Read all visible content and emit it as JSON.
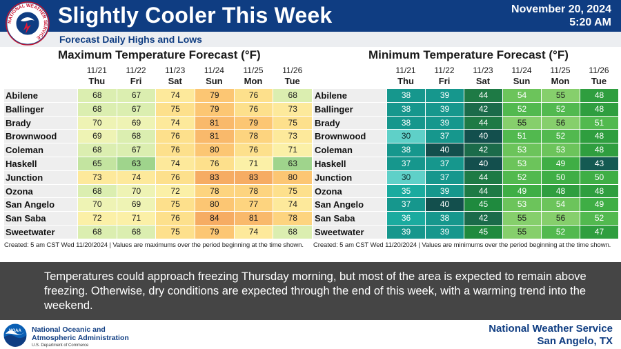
{
  "header": {
    "title": "Slightly Cooler This Week",
    "date": "November 20, 2024",
    "time": "5:20 AM",
    "subtitle": "Forecast Daily Highs and Lows",
    "logo_text": "NATIONAL WEATHER SERVICE"
  },
  "days": [
    {
      "date": "11/21",
      "dow": "Thu"
    },
    {
      "date": "11/22",
      "dow": "Fri"
    },
    {
      "date": "11/23",
      "dow": "Sat"
    },
    {
      "date": "11/24",
      "dow": "Sun"
    },
    {
      "date": "11/25",
      "dow": "Mon"
    },
    {
      "date": "11/26",
      "dow": "Tue"
    }
  ],
  "max_table": {
    "title": "Maximum Temperature Forecast (°F)",
    "footnote": "Created: 5 am CST Wed 11/20/2024  |  Values are maximums over the period beginning at the time shown.",
    "rows": [
      {
        "city": "Abilene",
        "values": [
          68,
          67,
          74,
          79,
          76,
          68
        ]
      },
      {
        "city": "Ballinger",
        "values": [
          68,
          67,
          75,
          79,
          76,
          73
        ]
      },
      {
        "city": "Brady",
        "values": [
          70,
          69,
          74,
          81,
          79,
          75
        ]
      },
      {
        "city": "Brownwood",
        "values": [
          69,
          68,
          76,
          81,
          78,
          73
        ]
      },
      {
        "city": "Coleman",
        "values": [
          68,
          67,
          76,
          80,
          76,
          71
        ]
      },
      {
        "city": "Haskell",
        "values": [
          65,
          63,
          74,
          76,
          71,
          63
        ]
      },
      {
        "city": "Junction",
        "values": [
          73,
          74,
          76,
          83,
          83,
          80
        ]
      },
      {
        "city": "Ozona",
        "values": [
          68,
          70,
          72,
          78,
          78,
          75
        ]
      },
      {
        "city": "San Angelo",
        "values": [
          70,
          69,
          75,
          80,
          77,
          74
        ]
      },
      {
        "city": "San Saba",
        "values": [
          72,
          71,
          76,
          84,
          81,
          78
        ]
      },
      {
        "city": "Sweetwater",
        "values": [
          68,
          68,
          75,
          79,
          74,
          68
        ]
      }
    ]
  },
  "min_table": {
    "title": "Minimum Temperature Forecast (°F)",
    "footnote": "Created: 5 am CST Wed 11/20/2024  |  Values are minimums over the period beginning at the time shown.",
    "rows": [
      {
        "city": "Abilene",
        "values": [
          38,
          39,
          44,
          54,
          55,
          48
        ]
      },
      {
        "city": "Ballinger",
        "values": [
          38,
          39,
          42,
          52,
          52,
          48
        ]
      },
      {
        "city": "Brady",
        "values": [
          38,
          39,
          44,
          55,
          56,
          51
        ]
      },
      {
        "city": "Brownwood",
        "values": [
          30,
          37,
          40,
          51,
          52,
          48
        ]
      },
      {
        "city": "Coleman",
        "values": [
          38,
          40,
          42,
          53,
          53,
          48
        ]
      },
      {
        "city": "Haskell",
        "values": [
          37,
          37,
          40,
          53,
          49,
          43
        ]
      },
      {
        "city": "Junction",
        "values": [
          30,
          37,
          44,
          52,
          50,
          50
        ]
      },
      {
        "city": "Ozona",
        "values": [
          35,
          39,
          44,
          49,
          48,
          48
        ]
      },
      {
        "city": "San Angelo",
        "values": [
          37,
          40,
          45,
          53,
          54,
          49
        ]
      },
      {
        "city": "San Saba",
        "values": [
          36,
          38,
          42,
          55,
          56,
          52
        ]
      },
      {
        "city": "Sweetwater",
        "values": [
          39,
          39,
          45,
          55,
          52,
          47
        ]
      }
    ]
  },
  "discussion": "Temperatures could approach freezing Thursday morning, but most of the area is expected to remain above freezing. Otherwise, dry conditions are expected through the end of this week, with a warming trend into the weekend.",
  "footer": {
    "noaa_line1": "National Oceanic and",
    "noaa_line2": "Atmospheric Administration",
    "noaa_dept": "U.S. Department of Commerce",
    "noaa_logo_text": "NOAA",
    "office_line1": "National Weather Service",
    "office_line2": "San Angelo, TX"
  },
  "colors": {
    "header_blue": "#0f3d82",
    "discussion_gray": "#454545"
  }
}
